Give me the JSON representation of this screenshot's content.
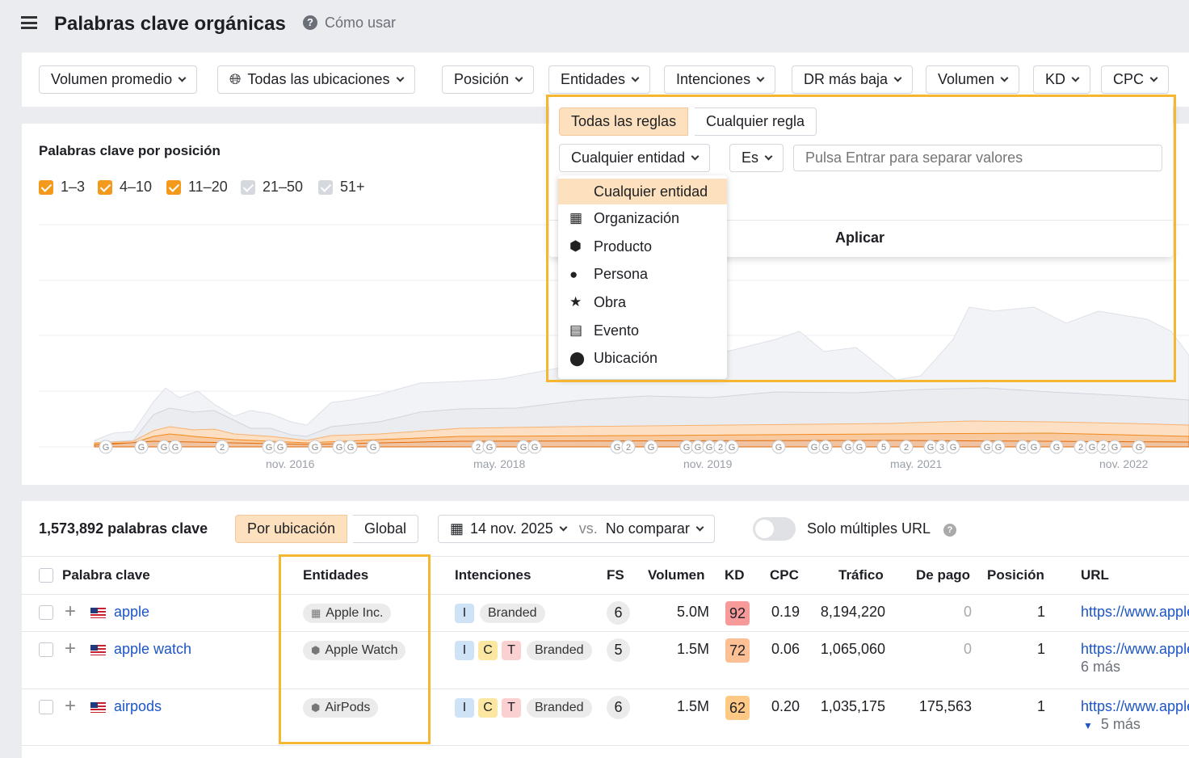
{
  "header": {
    "title": "Palabras clave orgánicas",
    "how_to": "Cómo usar"
  },
  "filters": [
    "Volumen promedio",
    "Todas las ubicaciones",
    "Posición",
    "Entidades",
    "Intenciones",
    "DR más baja",
    "Volumen",
    "KD",
    "CPC"
  ],
  "chart": {
    "title": "Palabras clave por posición",
    "legend": [
      {
        "label": "1–3",
        "checked": true
      },
      {
        "label": "4–10",
        "checked": true
      },
      {
        "label": "11–20",
        "checked": true
      },
      {
        "label": "21–50",
        "checked": false
      },
      {
        "label": "51+",
        "checked": false
      }
    ],
    "x_labels": [
      "nov. 2016",
      "may. 2018",
      "nov. 2019",
      "may. 2021",
      "nov. 2022"
    ],
    "markers": [
      "G",
      "G",
      "G",
      "G",
      "2",
      "G",
      "G",
      "G",
      "G",
      "G",
      "G",
      "2",
      "G",
      "G",
      "G",
      "G",
      "2",
      "G",
      "G",
      "G",
      "G",
      "2",
      "G",
      "G",
      "G",
      "G",
      "G",
      "G",
      "5",
      "2",
      "G",
      "3",
      "G",
      "G",
      "G",
      "G",
      "G",
      "G",
      "2",
      "G",
      "2",
      "G",
      "G"
    ],
    "colors": {
      "pos_1_3": "#e8720c",
      "pos_4_10": "#f7a54b",
      "pos_11_20": "#fcd3a8",
      "pos_21_50": "#d5dbe4",
      "pos_51": "#eef0f4"
    }
  },
  "entity_filter": {
    "rule_modes": [
      "Todas las reglas",
      "Cualquier regla"
    ],
    "active_rule_mode": "Todas las reglas",
    "entity_select": "Cualquier entidad",
    "operator": "Es",
    "value_placeholder": "Pulsa Entrar para separar valores",
    "apply": "Aplicar",
    "options": [
      {
        "label": "Cualquier entidad",
        "icon": "none",
        "selected": true
      },
      {
        "label": "Organización",
        "icon": "building-icon"
      },
      {
        "label": "Producto",
        "icon": "box-icon"
      },
      {
        "label": "Persona",
        "icon": "person-icon"
      },
      {
        "label": "Obra",
        "icon": "star-icon"
      },
      {
        "label": "Evento",
        "icon": "calendar-icon"
      },
      {
        "label": "Ubicación",
        "icon": "pin-icon"
      }
    ]
  },
  "table_toolbar": {
    "count": "1,573,892 palabras clave",
    "tabs": [
      "Por ubicación",
      "Global"
    ],
    "active_tab": "Por ubicación",
    "date": "14 nov. 2025",
    "vs": "vs.",
    "compare": "No comparar",
    "toggle_label": "Solo múltiples URL",
    "toggle_on": false
  },
  "columns": [
    "Palabra clave",
    "Entidades",
    "Intenciones",
    "FS",
    "Volumen",
    "KD",
    "CPC",
    "Tráfico",
    "De pago",
    "Posición",
    "URL"
  ],
  "rows": [
    {
      "keyword": "apple",
      "entity": "Apple Inc.",
      "entity_icon": "building-icon",
      "intents": [
        "I"
      ],
      "branded": "Branded",
      "fs": "6",
      "volume": "5.0M",
      "kd": "92",
      "kd_color": "#f79a9a",
      "cpc": "0.19",
      "traffic": "8,194,220",
      "paid": "0",
      "position": "1",
      "url": "https://www.apple.com/",
      "more": ""
    },
    {
      "keyword": "apple watch",
      "entity": "Apple Watch",
      "entity_icon": "box-icon",
      "intents": [
        "I",
        "C",
        "T"
      ],
      "branded": "Branded",
      "fs": "5",
      "volume": "1.5M",
      "kd": "72",
      "kd_color": "#fdbf94",
      "cpc": "0.06",
      "traffic": "1,065,060",
      "paid": "0",
      "position": "1",
      "url": "https://www.apple.com/",
      "more": "6 más"
    },
    {
      "keyword": "airpods",
      "entity": "AirPods",
      "entity_icon": "box-icon",
      "intents": [
        "I",
        "C",
        "T"
      ],
      "branded": "Branded",
      "fs": "6",
      "volume": "1.5M",
      "kd": "62",
      "kd_color": "#fdc985",
      "cpc": "0.20",
      "traffic": "1,035,175",
      "paid": "175,563",
      "position": "1",
      "url": "https://www.apple.com/",
      "more": "5 más"
    }
  ],
  "intent_colors": {
    "I": "#cfe3f7",
    "C": "#fbe7a1",
    "T": "#fbd0d0"
  }
}
